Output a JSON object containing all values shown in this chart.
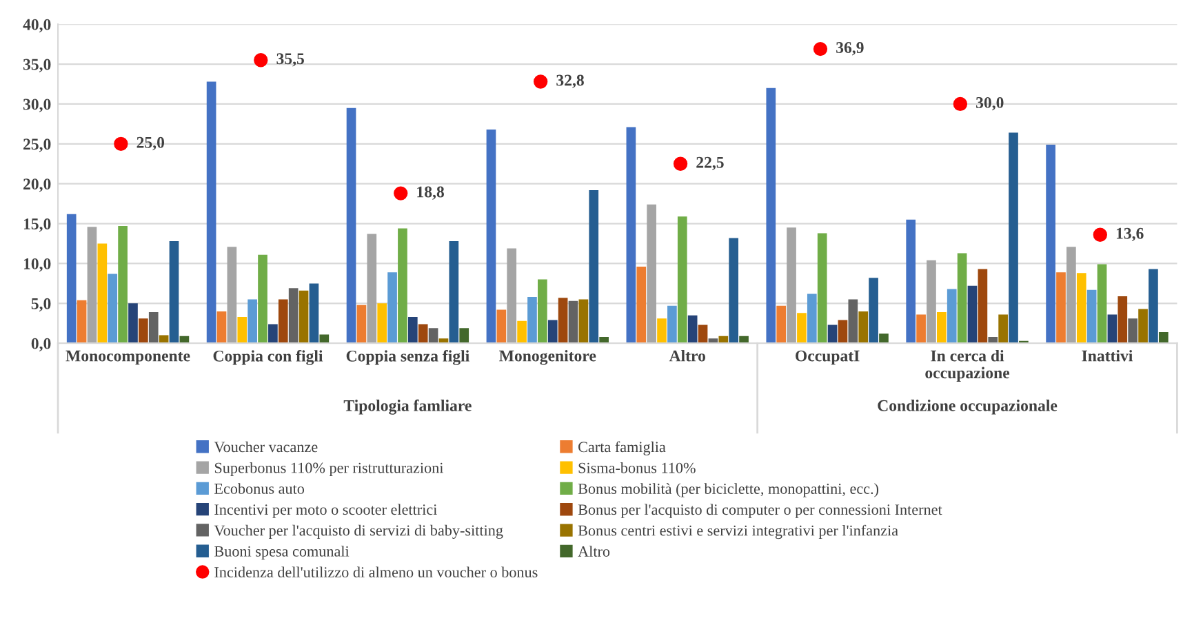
{
  "chart_data": {
    "type": "bar",
    "categories": [
      "Monocomponente",
      "Coppia con figli",
      "Coppia senza figli",
      "Monogenitore",
      "Altro",
      "OccupatI",
      "In cerca di\noccupazione",
      "Inattivi"
    ],
    "series": [
      {
        "name": "Voucher vacanze",
        "color": "#4472c4",
        "values": [
          16.2,
          32.8,
          29.5,
          26.8,
          27.1,
          32.0,
          15.5,
          24.9
        ]
      },
      {
        "name": "Carta famiglia",
        "color": "#ed7d31",
        "values": [
          5.4,
          4.0,
          4.8,
          4.2,
          9.6,
          4.7,
          3.6,
          8.9
        ]
      },
      {
        "name": "Superbonus 110% per ristrutturazioni",
        "color": "#a5a5a5",
        "values": [
          14.6,
          12.1,
          13.7,
          11.9,
          17.4,
          14.5,
          10.4,
          12.1
        ]
      },
      {
        "name": "Sisma-bonus 110%",
        "color": "#ffc000",
        "values": [
          12.5,
          3.3,
          5.0,
          2.8,
          3.1,
          3.8,
          3.9,
          8.8
        ]
      },
      {
        "name": "Ecobonus auto",
        "color": "#5b9bd5",
        "values": [
          8.7,
          5.5,
          8.9,
          5.8,
          4.7,
          6.2,
          6.8,
          6.7
        ]
      },
      {
        "name": "Bonus mobilità (per biciclette, monopattini, ecc.)",
        "color": "#70ad47",
        "values": [
          14.7,
          11.1,
          14.4,
          8.0,
          15.9,
          13.8,
          11.3,
          9.9
        ]
      },
      {
        "name": "Incentivi per moto o scooter elettrici",
        "color": "#264478",
        "values": [
          5.0,
          2.4,
          3.3,
          2.9,
          3.5,
          2.3,
          7.2,
          3.6
        ]
      },
      {
        "name": "Bonus per l'acquisto di computer o per connessioni Internet",
        "color": "#9e480e",
        "values": [
          3.1,
          5.5,
          2.4,
          5.7,
          2.3,
          2.9,
          9.3,
          5.9
        ]
      },
      {
        "name": "Voucher per l'acquisto di servizi di baby-sitting",
        "color": "#636363",
        "values": [
          3.9,
          6.9,
          1.9,
          5.3,
          0.6,
          5.5,
          0.8,
          3.1
        ]
      },
      {
        "name": "Bonus centri estivi e servizi integrativi per l'infanzia",
        "color": "#997300",
        "values": [
          1.0,
          6.6,
          0.6,
          5.5,
          0.9,
          4.0,
          3.6,
          4.3
        ]
      },
      {
        "name": "Buoni spesa comunali",
        "color": "#255e91",
        "values": [
          12.8,
          7.5,
          12.8,
          19.2,
          13.2,
          8.2,
          26.4,
          9.3
        ]
      },
      {
        "name": "Altro",
        "color": "#43682b",
        "values": [
          0.9,
          1.1,
          1.9,
          0.8,
          0.9,
          1.2,
          0.3,
          1.4
        ]
      },
      {
        "name": "Incidenza dell'utilizzo di almeno un voucher o bonus",
        "type": "scatter",
        "color": "#ff0000",
        "marker": "circle",
        "x": [
          "Monocomponente",
          "Coppia con figli",
          "Coppia senza figli",
          "Monogenitore",
          "Altro",
          "OccupatI",
          "In cerca di\noccupazione",
          "Inattivi"
        ],
        "values": [
          25.0,
          35.5,
          18.8,
          32.8,
          22.5,
          36.9,
          30.0,
          13.6
        ],
        "value_labels": [
          "25,0",
          "35,5",
          "18,8",
          "32,8",
          "22,5",
          "36,9",
          "30,0",
          "13,6"
        ]
      }
    ],
    "ylim": [
      0,
      40
    ],
    "yticks": [
      {
        "value": 0,
        "label": "0,0"
      },
      {
        "value": 5,
        "label": "5,0"
      },
      {
        "value": 10,
        "label": "10,0"
      },
      {
        "value": 15,
        "label": "15,0"
      },
      {
        "value": 20,
        "label": "20,0"
      },
      {
        "value": 25,
        "label": "25,0"
      },
      {
        "value": 30,
        "label": "30,0"
      },
      {
        "value": 35,
        "label": "35,0"
      },
      {
        "value": 40,
        "label": "40,0"
      }
    ],
    "grid": "y",
    "legend": "bottom",
    "annotations": [
      "Tipologia famliare",
      "Condizione occupazionale"
    ]
  }
}
